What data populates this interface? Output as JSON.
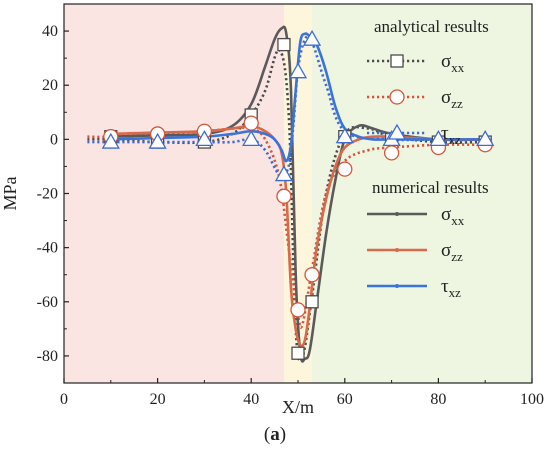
{
  "chart_data": {
    "type": "line",
    "title": "",
    "xlabel": "X/m",
    "ylabel": "MPa",
    "xlim": [
      0,
      100
    ],
    "ylim": [
      -90,
      50
    ],
    "xticks": [
      0,
      20,
      40,
      60,
      80,
      100
    ],
    "yticks": [
      -80,
      -60,
      -40,
      -20,
      0,
      20,
      40
    ],
    "regions": [
      {
        "from": 0,
        "to": 47,
        "color": "#fbe5e3"
      },
      {
        "from": 47,
        "to": 53,
        "color": "#fdf5dc"
      },
      {
        "from": 53,
        "to": 100,
        "color": "#eef5e1"
      }
    ],
    "legend": {
      "analytical_heading": "analytical results",
      "numerical_heading": "numerical results"
    },
    "analytical": [
      {
        "symbol": "σ",
        "sub": "xx",
        "color": "#4b4b4b",
        "marker": "square",
        "x": [
          10,
          20,
          30,
          40,
          47,
          50,
          53,
          60,
          70,
          80,
          90
        ],
        "y": [
          1,
          -1,
          -1,
          9,
          35,
          -79,
          -60,
          1,
          0,
          -1,
          -1
        ]
      },
      {
        "symbol": "σ",
        "sub": "zz",
        "color": "#d4553a",
        "marker": "circle",
        "x": [
          10,
          20,
          30,
          40,
          47,
          50,
          53,
          60,
          70,
          80,
          90
        ],
        "y": [
          1,
          2,
          3,
          6,
          -21,
          -63,
          -50,
          -11,
          -5,
          -3,
          -2
        ]
      },
      {
        "symbol": "τ",
        "sub": "xz",
        "color": "#3d6cd1",
        "marker": "triangle",
        "x": [
          10,
          20,
          30,
          40,
          47,
          50,
          53,
          60,
          70,
          80,
          90
        ],
        "y": [
          -1,
          -1,
          0,
          0,
          -13,
          25,
          37,
          1,
          0,
          0,
          0
        ]
      }
    ],
    "analytical_curves": [
      {
        "x": [
          5,
          10,
          20,
          30,
          36,
          40,
          43,
          46,
          48,
          49.5,
          51,
          53,
          56,
          60,
          65,
          70,
          80,
          90
        ],
        "y": [
          0,
          0,
          -1,
          -1,
          2,
          9,
          18,
          33,
          10,
          -70,
          -80,
          -58,
          -20,
          2,
          4,
          1,
          -1,
          -1
        ]
      },
      {
        "x": [
          5,
          10,
          20,
          30,
          36,
          40,
          43,
          46,
          48,
          50,
          51,
          53,
          56,
          60,
          65,
          70,
          80,
          90
        ],
        "y": [
          1,
          1,
          2,
          3,
          4,
          4,
          0,
          -14,
          -40,
          -65,
          -68,
          -48,
          -20,
          -8,
          -4,
          -3,
          -2,
          -2
        ]
      },
      {
        "x": [
          5,
          10,
          20,
          30,
          36,
          40,
          43,
          46,
          48,
          49,
          50,
          51.5,
          53,
          56,
          60,
          70,
          80,
          90
        ],
        "y": [
          -1,
          -1,
          -1,
          -1,
          -1,
          0,
          -4,
          -13,
          -10,
          5,
          26,
          37,
          36,
          20,
          3,
          0,
          0,
          0
        ]
      }
    ],
    "numerical": [
      {
        "symbol": "σ",
        "sub": "xx",
        "color": "#5a5a5a",
        "x": [
          10,
          20,
          30,
          36,
          40,
          43,
          45,
          46.5,
          47.5,
          48.5,
          49.5,
          50.5,
          51.5,
          52.5,
          54,
          56,
          58,
          60,
          63,
          66,
          70,
          80,
          90
        ],
        "y": [
          1,
          1.5,
          2,
          5,
          13,
          27,
          37,
          41,
          39,
          18,
          -50,
          -79,
          -81,
          -78,
          -60,
          -35,
          -15,
          0,
          5,
          4,
          2,
          0,
          0
        ]
      },
      {
        "symbol": "σ",
        "sub": "zz",
        "color": "#d9694b",
        "x": [
          10,
          20,
          30,
          36,
          40,
          43,
          45,
          46.5,
          47.5,
          48.5,
          49.5,
          50.5,
          51.5,
          52.5,
          54,
          56,
          58,
          60,
          63,
          66,
          70,
          80,
          90
        ],
        "y": [
          2,
          2.5,
          3,
          4,
          5,
          3,
          0,
          -5,
          -20,
          -55,
          -70,
          -76,
          -74,
          -62,
          -40,
          -22,
          -10,
          -3,
          0,
          1,
          1,
          0,
          0
        ]
      },
      {
        "symbol": "τ",
        "sub": "xz",
        "color": "#3b74d8",
        "x": [
          10,
          20,
          30,
          36,
          40,
          43,
          45,
          46.5,
          47.5,
          48.5,
          49.5,
          50.5,
          51.5,
          52.5,
          54,
          56,
          58,
          60,
          63,
          66,
          70,
          80,
          90
        ],
        "y": [
          0,
          0.5,
          1,
          2,
          3,
          2,
          0,
          -4,
          -8,
          -2,
          18,
          36,
          39,
          38,
          35,
          25,
          12,
          4,
          1,
          0,
          0,
          0,
          0
        ]
      }
    ]
  },
  "caption": {
    "open": "(",
    "letter": "a",
    "close": ")"
  }
}
